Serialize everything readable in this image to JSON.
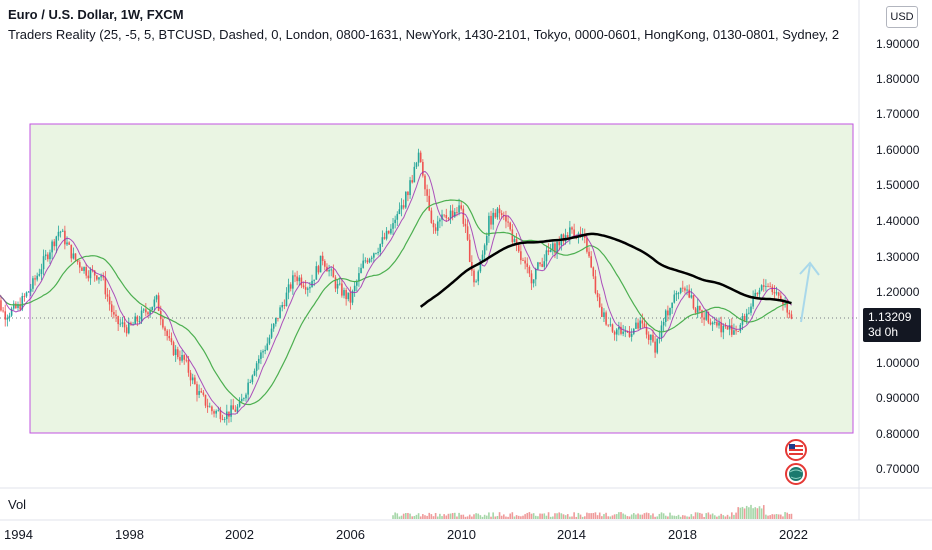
{
  "header": {
    "title": "Euro / U.S. Dollar, 1W, FXCM",
    "indicator": "Traders Reality (25, -5, 5, BTCUSD, Dashed, 0, London, 0800-1631, NewYork, 1430-2101, Tokyo, 0000-0601, HongKong, 0130-0801, Sydney, 2"
  },
  "currency_button": "USD",
  "price_axis": [
    "1.90000",
    "1.80000",
    "1.70000",
    "1.60000",
    "1.50000",
    "1.40000",
    "1.30000",
    "1.20000",
    "1.10000",
    "1.00000",
    "0.90000",
    "0.80000",
    "0.70000"
  ],
  "time_axis": [
    "1994",
    "1998",
    "2002",
    "2006",
    "2010",
    "2014",
    "2018",
    "2022"
  ],
  "last_price": {
    "value": "1.13209",
    "countdown": "3d 0h"
  },
  "volume_label": "Vol",
  "icons": [
    "us-flag-event-icon",
    "globe-event-icon"
  ],
  "colors": {
    "rect_border": "#c253e0",
    "rect_fill": "#eaf5e3",
    "sma_long": "#000000",
    "ma_green": "#4caf50",
    "ma_purple": "#9c27b0",
    "up": "#26a69a",
    "down": "#ef5350",
    "arrow": "#a9d8ea"
  },
  "chart_data": {
    "type": "candlestick",
    "symbol": "EURUSD",
    "interval": "1W",
    "ylim": [
      0.65,
      2.0
    ],
    "xlim": [
      1993,
      2024
    ],
    "last_price": 1.13209,
    "approx_close_series": {
      "x": [
        1993.0,
        1993.5,
        1994.0,
        1994.5,
        1995.0,
        1995.5,
        1996.0,
        1996.5,
        1997.0,
        1997.5,
        1998.0,
        1998.5,
        1999.0,
        1999.5,
        2000.0,
        2000.5,
        2001.0,
        2001.5,
        2002.0,
        2002.5,
        2003.0,
        2003.5,
        2004.0,
        2004.5,
        2005.0,
        2005.5,
        2006.0,
        2006.5,
        2007.0,
        2007.5,
        2008.0,
        2008.5,
        2009.0,
        2009.5,
        2010.0,
        2010.5,
        2011.0,
        2011.5,
        2012.0,
        2012.5,
        2013.0,
        2013.5,
        2014.0,
        2014.5,
        2015.0,
        2015.5,
        2016.0,
        2016.5,
        2017.0,
        2017.5,
        2018.0,
        2018.5,
        2019.0,
        2019.5,
        2020.0,
        2020.5,
        2021.0,
        2021.5,
        2022.0
      ],
      "y": [
        1.23,
        1.14,
        1.16,
        1.22,
        1.3,
        1.38,
        1.3,
        1.26,
        1.25,
        1.12,
        1.1,
        1.14,
        1.18,
        1.05,
        1.01,
        0.92,
        0.87,
        0.86,
        0.88,
        0.99,
        1.06,
        1.16,
        1.25,
        1.22,
        1.3,
        1.22,
        1.18,
        1.29,
        1.33,
        1.38,
        1.47,
        1.59,
        1.38,
        1.42,
        1.44,
        1.22,
        1.4,
        1.44,
        1.32,
        1.24,
        1.3,
        1.34,
        1.38,
        1.34,
        1.15,
        1.1,
        1.09,
        1.11,
        1.05,
        1.16,
        1.23,
        1.15,
        1.13,
        1.1,
        1.1,
        1.17,
        1.23,
        1.19,
        1.13
      ]
    }
  }
}
